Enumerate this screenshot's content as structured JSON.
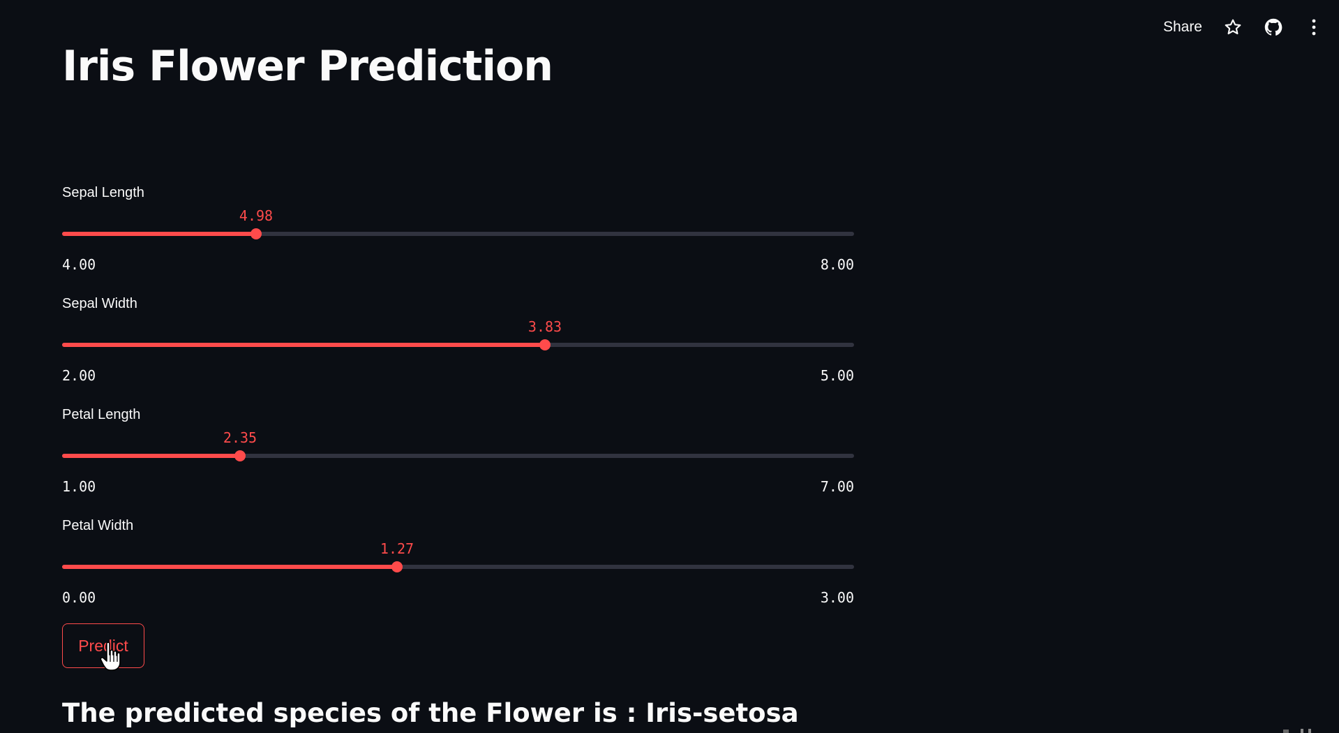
{
  "toolbar": {
    "share_label": "Share",
    "icons": [
      "star-icon",
      "github-icon",
      "more-vertical-icon"
    ]
  },
  "title": "Iris Flower Prediction",
  "sliders": [
    {
      "label": "Sepal Length",
      "value": "4.98",
      "min": "4.00",
      "max": "8.00",
      "fraction": 0.245
    },
    {
      "label": "Sepal Width",
      "value": "3.83",
      "min": "2.00",
      "max": "5.00",
      "fraction": 0.61
    },
    {
      "label": "Petal Length",
      "value": "2.35",
      "min": "1.00",
      "max": "7.00",
      "fraction": 0.225
    },
    {
      "label": "Petal Width",
      "value": "1.27",
      "min": "0.00",
      "max": "3.00",
      "fraction": 0.423
    }
  ],
  "predict_label": "Predict",
  "result_text": "The predicted species of the Flower is : Iris-setosa",
  "colors": {
    "background": "#0b0e14",
    "accent": "#ff4b4b",
    "track": "#31333f",
    "text": "#fafafa"
  }
}
